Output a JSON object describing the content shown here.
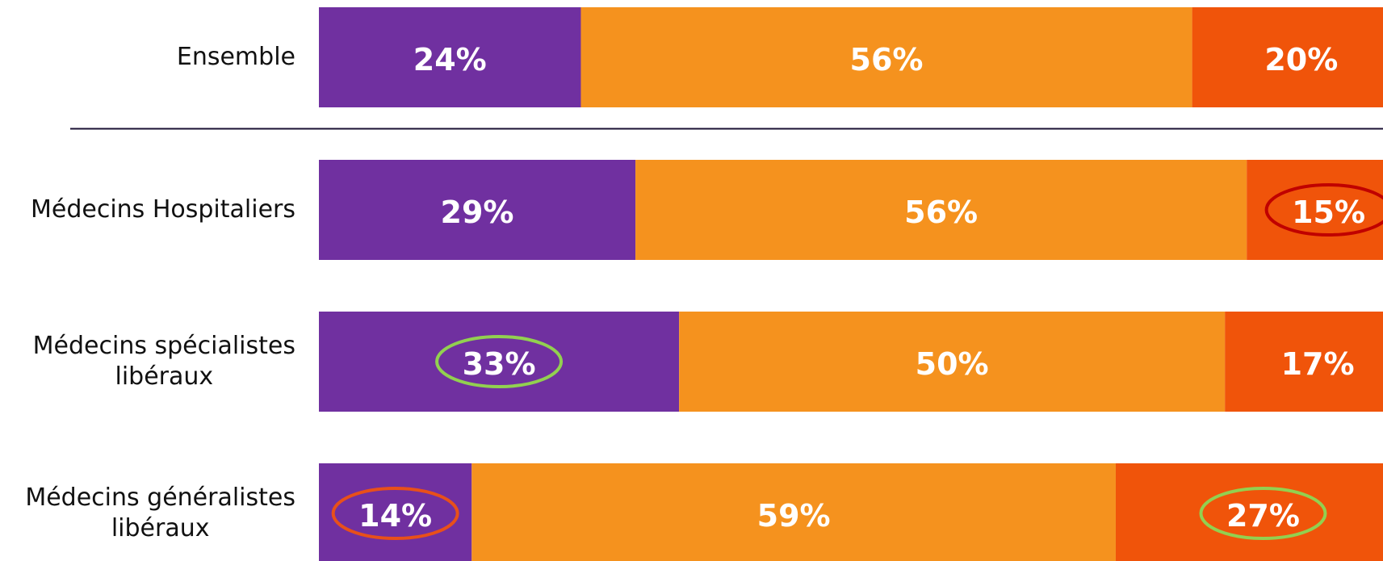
{
  "chart_data": {
    "type": "stacked-bar-horizontal",
    "categories": [
      "Ensemble",
      "Médecins Hospitaliers",
      "Médecins spécialistes\nlibéraux",
      "Médecins généralistes\nlibéraux"
    ],
    "series": [
      {
        "color": "#7030a0",
        "values": [
          24,
          29,
          33,
          14
        ],
        "value_labels": [
          "24%",
          "29%",
          "33%",
          "14%"
        ]
      },
      {
        "color": "#f5921e",
        "values": [
          56,
          56,
          50,
          59
        ],
        "value_labels": [
          "56%",
          "56%",
          "50%",
          "59%"
        ]
      },
      {
        "color": "#f0540a",
        "values": [
          20,
          15,
          17,
          27
        ],
        "value_labels": [
          "20%",
          "15%",
          "17%",
          "27%"
        ]
      }
    ],
    "xlim": [
      0,
      100
    ],
    "separator_after": 0,
    "highlights": [
      {
        "series": 2,
        "index": 1,
        "color": "#c00000"
      },
      {
        "series": 0,
        "index": 2,
        "color": "#92d050"
      },
      {
        "series": 0,
        "index": 3,
        "color": "#e8501a"
      },
      {
        "series": 2,
        "index": 3,
        "color": "#92d050"
      }
    ]
  }
}
